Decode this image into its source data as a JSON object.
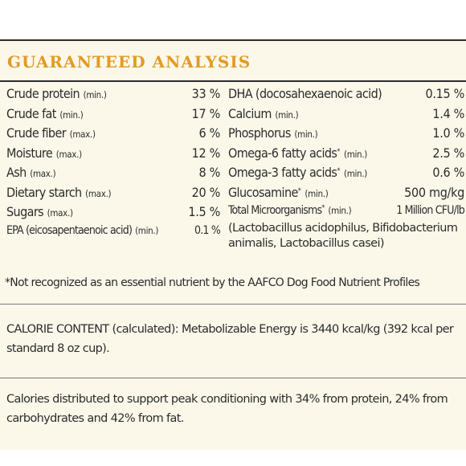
{
  "title": "GUARANTEED ANALYSIS",
  "left_items": [
    {
      "name": "Crude protein",
      "qualifier": "(min.)",
      "value": "33 %"
    },
    {
      "name": "Crude fat",
      "qualifier": "(min.)",
      "value": "17 %"
    },
    {
      "name": "Crude fiber",
      "qualifier": "(max.)",
      "value": "6 %"
    },
    {
      "name": "Moisture",
      "qualifier": "(max.)",
      "value": "12 %"
    },
    {
      "name": "Ash",
      "qualifier": "(max.)",
      "value": "8 %"
    },
    {
      "name": "Dietary starch",
      "qualifier": "(max.)",
      "value": "20 %"
    },
    {
      "name": "Sugars",
      "qualifier": "(max.)",
      "value": "1.5 %"
    },
    {
      "name": "EPA (eicosapentaenoic acid)",
      "qualifier": "(min.)",
      "value": "0.1 %"
    }
  ],
  "right_items": [
    {
      "name": "DHA (docosahexaenoic acid)",
      "mark": "",
      "qualifier": "",
      "value": "0.15 %"
    },
    {
      "name": "Calcium",
      "mark": "",
      "qualifier": "(min.)",
      "value": "1.4 %"
    },
    {
      "name": "Phosphorus",
      "mark": "",
      "qualifier": "(min.)",
      "value": "1.0 %"
    },
    {
      "name": "Omega-6 fatty acids",
      "mark": "*",
      "qualifier": "(min.)",
      "value": "2.5 %"
    },
    {
      "name": "Omega-3 fatty acids",
      "mark": "*",
      "qualifier": "(min.)",
      "value": "0.6 %"
    },
    {
      "name": "Glucosamine",
      "mark": "*",
      "qualifier": "(min.)",
      "value": "500 mg/kg"
    },
    {
      "name": "Total Microorganisms",
      "mark": "*",
      "qualifier": "(min.)",
      "value": "1 Million CFU/lb"
    }
  ],
  "microorganisms_detail": "(Lactobacillus acidophilus, Bifidobacterium animalis, Lactobacillus casei)",
  "footnote": "*Not recognized as an essential nutrient by the AAFCO Dog Food Nutrient Profiles",
  "calorie_content": "CALORIE CONTENT (calculated): Metabolizable Energy is 3440 kcal/kg (392 kcal per standard 8 oz cup).",
  "calorie_distribution": "Calories distributed to support peak conditioning with 34% from protein, 24% from carbohydrates and 42% from fat.",
  "colors": {
    "title": "#e39a25",
    "background": "#fbf8ea",
    "text": "#2c2c2c"
  }
}
